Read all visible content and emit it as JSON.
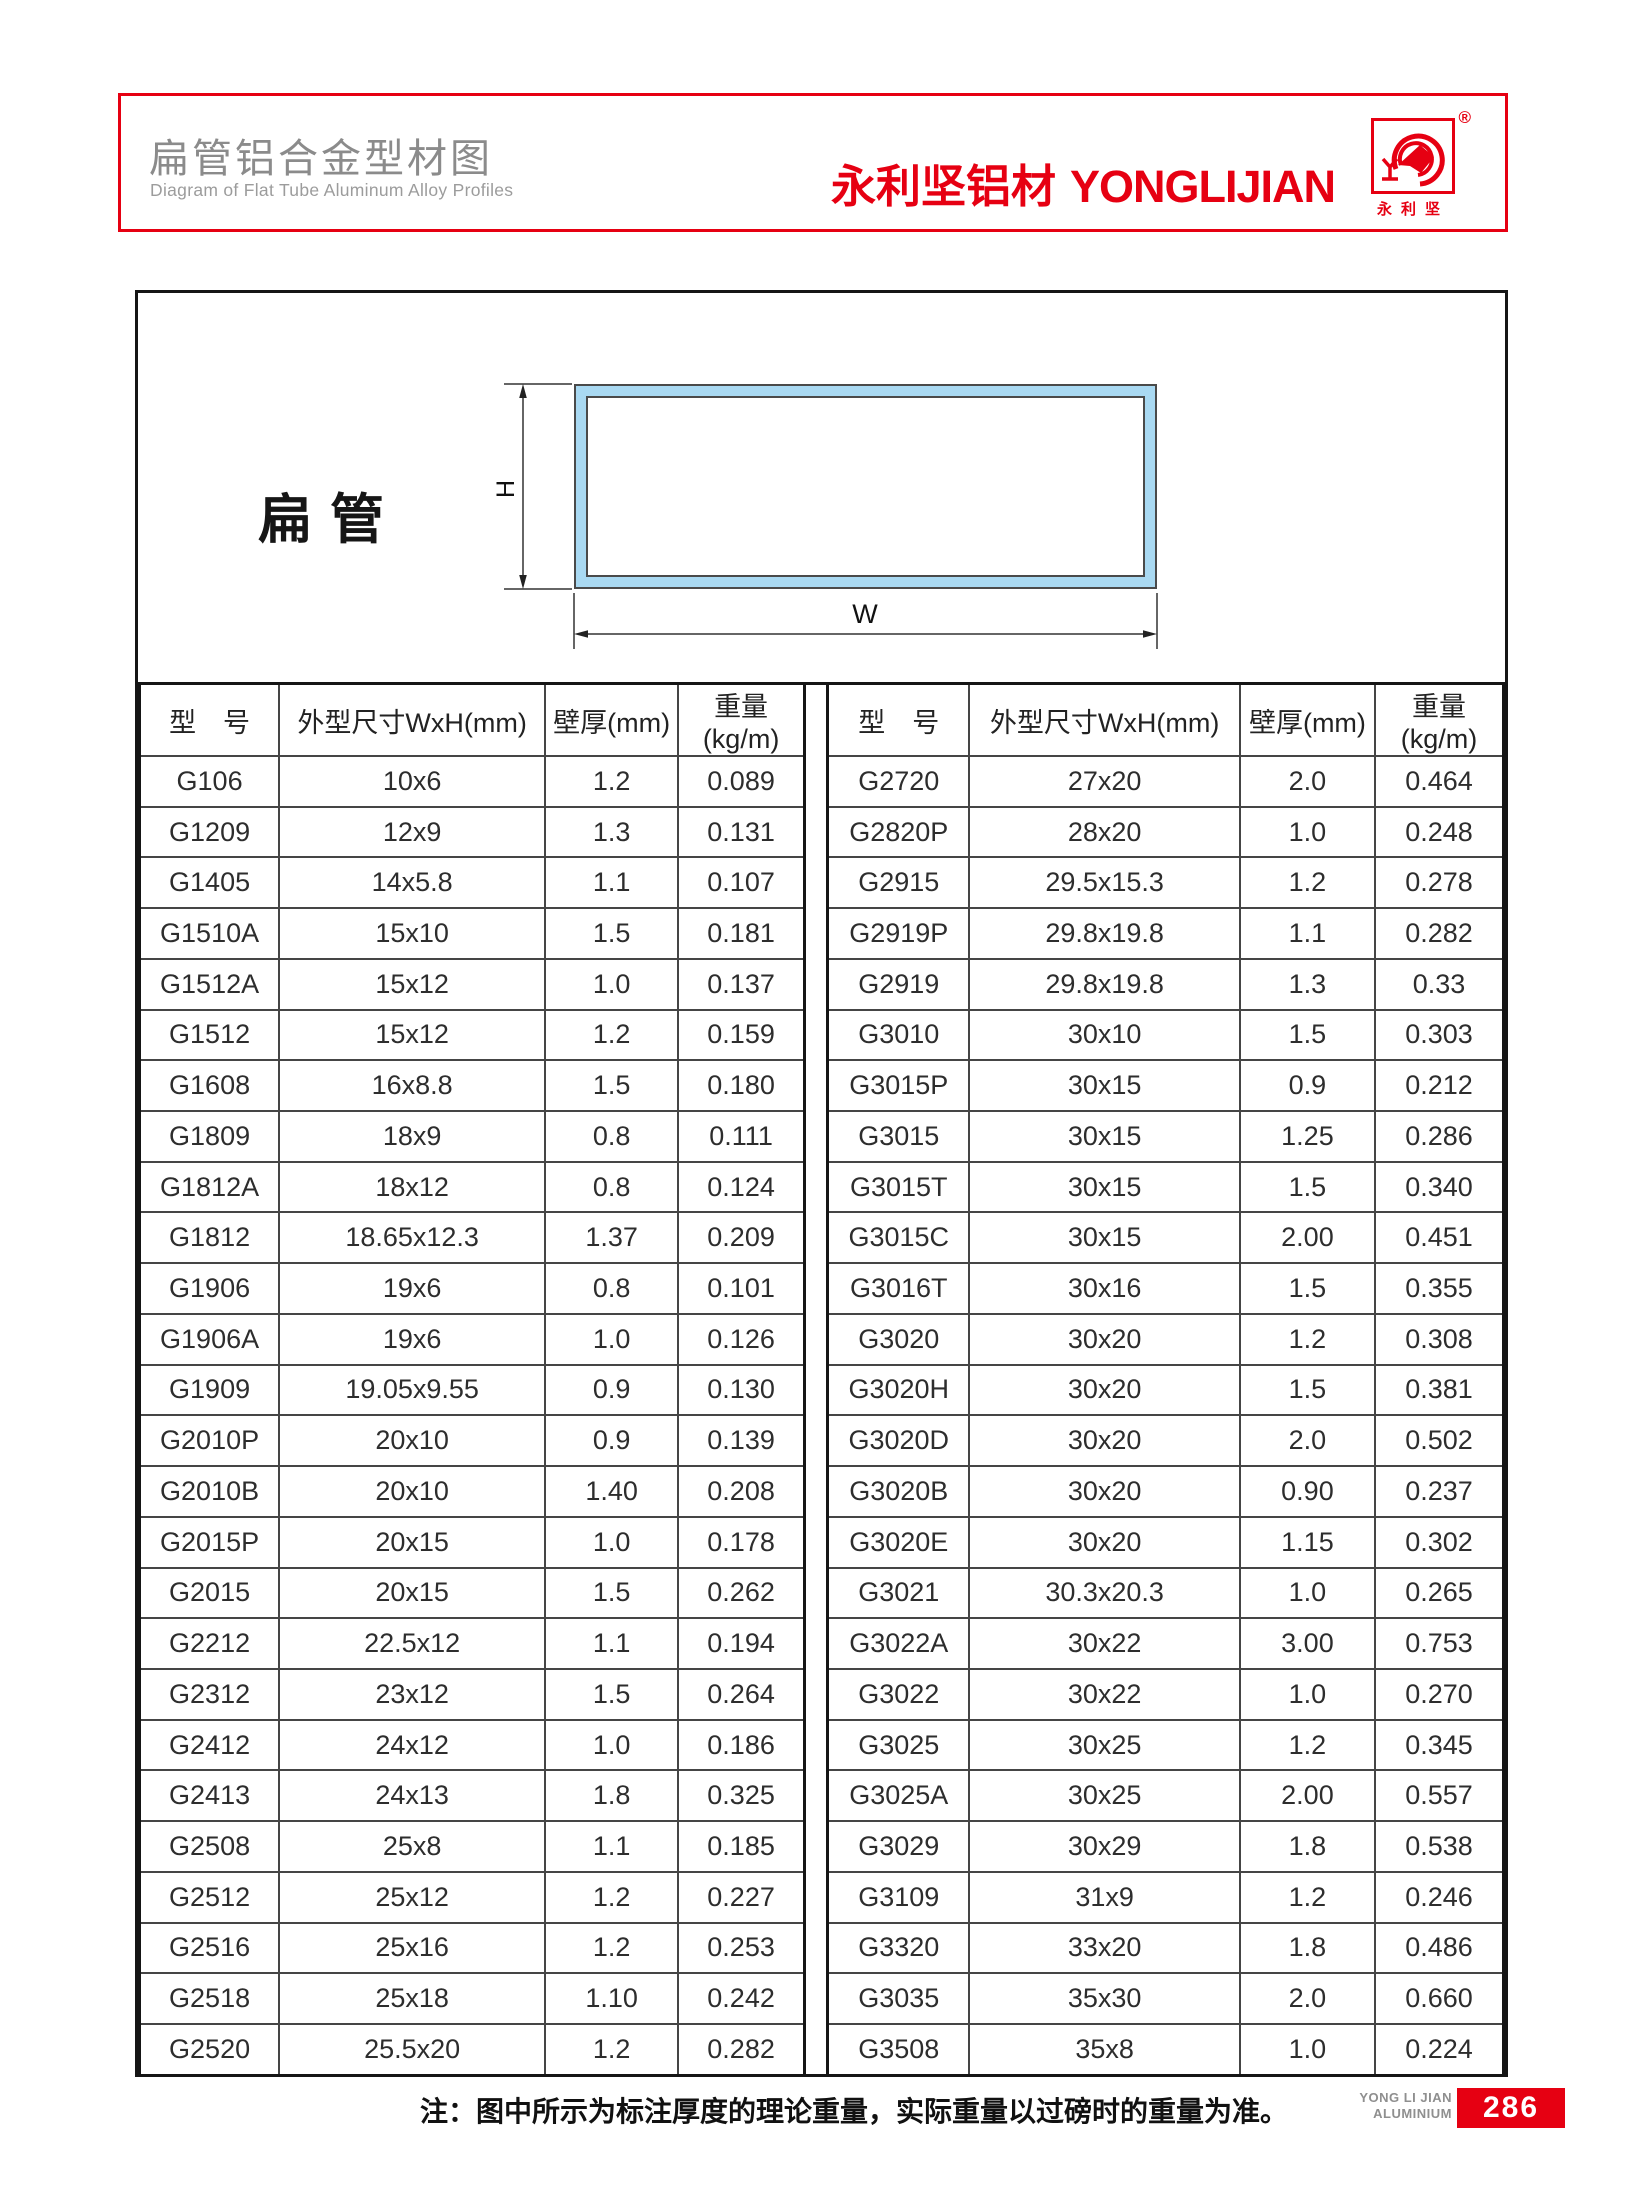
{
  "header": {
    "title": "扁管铝合金型材图",
    "subtitle": "Diagram of Flat Tube Aluminum Alloy Profiles",
    "brand_cn": "永利坚铝材",
    "brand_en": "YONGLIJIAN",
    "logo": {
      "registered": "®",
      "caption": "永利坚"
    },
    "accent_color": "#e60012"
  },
  "diagram": {
    "label": "扁管",
    "dim_h": "H",
    "dim_w": "W",
    "tube_fill": "#a9d9f2"
  },
  "tables": {
    "columns": [
      "型　号",
      "外型尺寸WxH(mm)",
      "壁厚(mm)",
      "重量(kg/m)"
    ],
    "left": {
      "rows": [
        [
          "G106",
          "10x6",
          "1.2",
          "0.089"
        ],
        [
          "G1209",
          "12x9",
          "1.3",
          "0.131"
        ],
        [
          "G1405",
          "14x5.8",
          "1.1",
          "0.107"
        ],
        [
          "G1510A",
          "15x10",
          "1.5",
          "0.181"
        ],
        [
          "G1512A",
          "15x12",
          "1.0",
          "0.137"
        ],
        [
          "G1512",
          "15x12",
          "1.2",
          "0.159"
        ],
        [
          "G1608",
          "16x8.8",
          "1.5",
          "0.180"
        ],
        [
          "G1809",
          "18x9",
          "0.8",
          "0.111"
        ],
        [
          "G1812A",
          "18x12",
          "0.8",
          "0.124"
        ],
        [
          "G1812",
          "18.65x12.3",
          "1.37",
          "0.209"
        ],
        [
          "G1906",
          "19x6",
          "0.8",
          "0.101"
        ],
        [
          "G1906A",
          "19x6",
          "1.0",
          "0.126"
        ],
        [
          "G1909",
          "19.05x9.55",
          "0.9",
          "0.130"
        ],
        [
          "G2010P",
          "20x10",
          "0.9",
          "0.139"
        ],
        [
          "G2010B",
          "20x10",
          "1.40",
          "0.208"
        ],
        [
          "G2015P",
          "20x15",
          "1.0",
          "0.178"
        ],
        [
          "G2015",
          "20x15",
          "1.5",
          "0.262"
        ],
        [
          "G2212",
          "22.5x12",
          "1.1",
          "0.194"
        ],
        [
          "G2312",
          "23x12",
          "1.5",
          "0.264"
        ],
        [
          "G2412",
          "24x12",
          "1.0",
          "0.186"
        ],
        [
          "G2413",
          "24x13",
          "1.8",
          "0.325"
        ],
        [
          "G2508",
          "25x8",
          "1.1",
          "0.185"
        ],
        [
          "G2512",
          "25x12",
          "1.2",
          "0.227"
        ],
        [
          "G2516",
          "25x16",
          "1.2",
          "0.253"
        ],
        [
          "G2518",
          "25x18",
          "1.10",
          "0.242"
        ],
        [
          "G2520",
          "25.5x20",
          "1.2",
          "0.282"
        ]
      ]
    },
    "right": {
      "rows": [
        [
          "G2720",
          "27x20",
          "2.0",
          "0.464"
        ],
        [
          "G2820P",
          "28x20",
          "1.0",
          "0.248"
        ],
        [
          "G2915",
          "29.5x15.3",
          "1.2",
          "0.278"
        ],
        [
          "G2919P",
          "29.8x19.8",
          "1.1",
          "0.282"
        ],
        [
          "G2919",
          "29.8x19.8",
          "1.3",
          "0.33"
        ],
        [
          "G3010",
          "30x10",
          "1.5",
          "0.303"
        ],
        [
          "G3015P",
          "30x15",
          "0.9",
          "0.212"
        ],
        [
          "G3015",
          "30x15",
          "1.25",
          "0.286"
        ],
        [
          "G3015T",
          "30x15",
          "1.5",
          "0.340"
        ],
        [
          "G3015C",
          "30x15",
          "2.00",
          "0.451"
        ],
        [
          "G3016T",
          "30x16",
          "1.5",
          "0.355"
        ],
        [
          "G3020",
          "30x20",
          "1.2",
          "0.308"
        ],
        [
          "G3020H",
          "30x20",
          "1.5",
          "0.381"
        ],
        [
          "G3020D",
          "30x20",
          "2.0",
          "0.502"
        ],
        [
          "G3020B",
          "30x20",
          "0.90",
          "0.237"
        ],
        [
          "G3020E",
          "30x20",
          "1.15",
          "0.302"
        ],
        [
          "G3021",
          "30.3x20.3",
          "1.0",
          "0.265"
        ],
        [
          "G3022A",
          "30x22",
          "3.00",
          "0.753"
        ],
        [
          "G3022",
          "30x22",
          "1.0",
          "0.270"
        ],
        [
          "G3025",
          "30x25",
          "1.2",
          "0.345"
        ],
        [
          "G3025A",
          "30x25",
          "2.00",
          "0.557"
        ],
        [
          "G3029",
          "30x29",
          "1.8",
          "0.538"
        ],
        [
          "G3109",
          "31x9",
          "1.2",
          "0.246"
        ],
        [
          "G3320",
          "33x20",
          "1.8",
          "0.486"
        ],
        [
          "G3035",
          "35x30",
          "2.0",
          "0.660"
        ],
        [
          "G3508",
          "35x8",
          "1.0",
          "0.224"
        ]
      ]
    }
  },
  "footer": {
    "note": "注：图中所示为标注厚度的理论重量，实际重量以过磅时的重量为准。",
    "brand_line1": "YONG LI JIAN",
    "brand_line2": "ALUMINIUM",
    "page_number": "286"
  }
}
